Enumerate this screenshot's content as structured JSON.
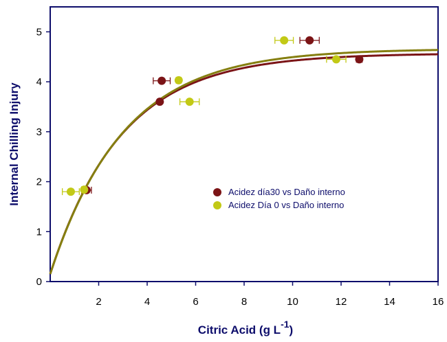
{
  "chart_data": {
    "type": "scatter",
    "xlabel": "Citric Acid (g L",
    "xlabel_sup": "-1",
    "xlabel_end": ")",
    "ylabel": "Internal Chilling Injury",
    "xlim": [
      0,
      16
    ],
    "ylim": [
      0,
      5.5
    ],
    "x_ticks": [
      2,
      4,
      6,
      8,
      10,
      12,
      14,
      16
    ],
    "y_ticks": [
      0,
      1,
      2,
      3,
      4,
      5
    ],
    "grid": false,
    "legend_position": "center-right",
    "series": [
      {
        "name": "Acidez día30 vs Daño interno",
        "color": "#7b1416",
        "points": [
          {
            "x": 1.5,
            "y": 1.83,
            "xerr": 0.2
          },
          {
            "x": 4.52,
            "y": 3.6,
            "xerr": 0.08
          },
          {
            "x": 4.6,
            "y": 4.02,
            "xerr": 0.35
          },
          {
            "x": 10.7,
            "y": 4.83,
            "xerr": 0.4
          },
          {
            "x": 12.75,
            "y": 4.45,
            "xerr": 0.12
          }
        ],
        "fit": {
          "a": 4.57,
          "b": 0.34,
          "x0": 0,
          "y0": 0.15
        }
      },
      {
        "name": "Acidez Día 0 vs Daño interno",
        "color": "#c2c916",
        "points": [
          {
            "x": 0.85,
            "y": 1.8,
            "xerr": 0.35
          },
          {
            "x": 1.4,
            "y": 1.84,
            "xerr": 0.1
          },
          {
            "x": 5.3,
            "y": 4.03,
            "xerr": 0.1
          },
          {
            "x": 5.75,
            "y": 3.6,
            "xerr": 0.4
          },
          {
            "x": 9.65,
            "y": 4.83,
            "xerr": 0.38
          },
          {
            "x": 11.8,
            "y": 4.45,
            "xerr": 0.4
          }
        ],
        "fit": {
          "a": 4.66,
          "b": 0.33,
          "x0": 0,
          "y0": 0.15
        }
      }
    ],
    "fit_line_color": "#857f10"
  }
}
